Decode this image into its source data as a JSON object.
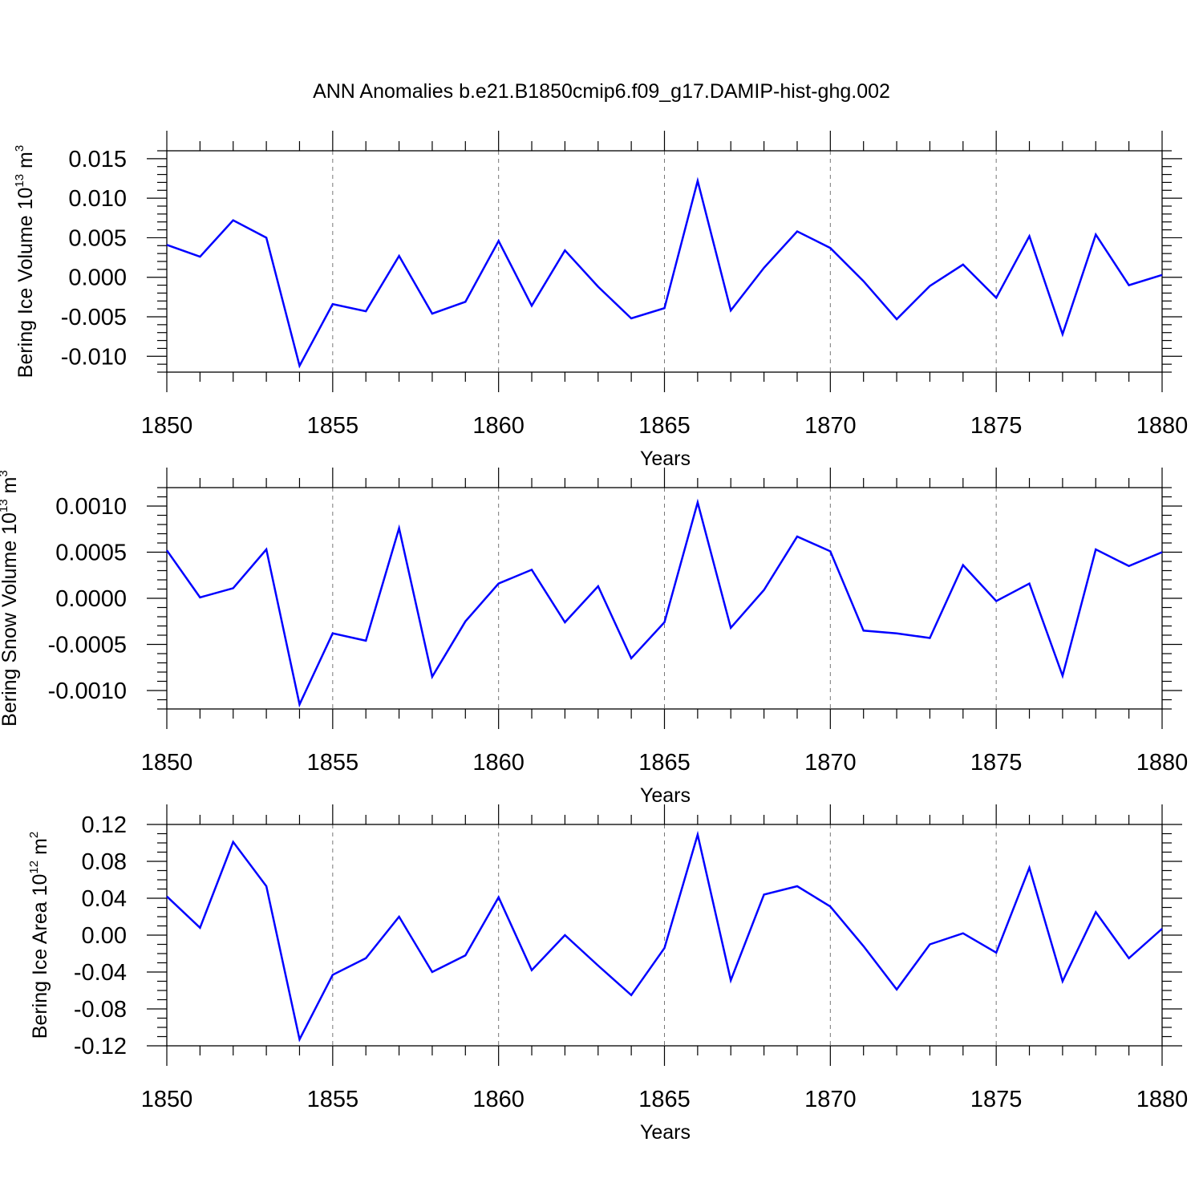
{
  "title": "ANN Anomalies b.e21.B1850cmip6.f09_g17.DAMIP-hist-ghg.002",
  "series_color": "#0000ff",
  "chart_data": [
    {
      "type": "line",
      "title": "",
      "xlabel": "Years",
      "ylabel_main": "Bering Ice Volume 10",
      "ylabel_exp": "13",
      "ylabel_unit": " m",
      "ylabel_unit_exp": "3",
      "xlim": [
        1850,
        1880
      ],
      "ylim": [
        -0.012,
        0.016
      ],
      "xticks": [
        1850,
        1855,
        1860,
        1865,
        1870,
        1875,
        1880
      ],
      "yticks": [
        -0.01,
        -0.005,
        0.0,
        0.005,
        0.01,
        0.015
      ],
      "ytick_labels": [
        "-0.010",
        "-0.005",
        "0.000",
        "0.005",
        "0.010",
        "0.015"
      ],
      "yminor_step": 0.001,
      "x": [
        1850,
        1851,
        1852,
        1853,
        1854,
        1855,
        1856,
        1857,
        1858,
        1859,
        1860,
        1861,
        1862,
        1863,
        1864,
        1865,
        1866,
        1867,
        1868,
        1869,
        1870,
        1871,
        1872,
        1873,
        1874,
        1875,
        1876,
        1877,
        1878,
        1879,
        1880
      ],
      "values": [
        0.0041,
        0.0026,
        0.0072,
        0.005,
        -0.0112,
        -0.0034,
        -0.0043,
        0.0027,
        -0.0046,
        -0.0031,
        0.0046,
        -0.0036,
        0.0034,
        -0.0012,
        -0.0052,
        -0.0039,
        0.0122,
        -0.0042,
        0.0012,
        0.0058,
        0.0037,
        -0.0005,
        -0.0053,
        -0.0011,
        0.0016,
        -0.0026,
        0.0052,
        -0.0072,
        0.0054,
        -0.001,
        0.0003
      ]
    },
    {
      "type": "line",
      "title": "",
      "xlabel": "Years",
      "ylabel_main": "Bering Snow Volume 10",
      "ylabel_exp": "13",
      "ylabel_unit": " m",
      "ylabel_unit_exp": "3",
      "xlim": [
        1850,
        1880
      ],
      "ylim": [
        -0.0012,
        0.0012
      ],
      "xticks": [
        1850,
        1855,
        1860,
        1865,
        1870,
        1875,
        1880
      ],
      "yticks": [
        -0.001,
        -0.0005,
        0.0,
        0.0005,
        0.001
      ],
      "ytick_labels": [
        "-0.0010",
        "-0.0005",
        "0.0000",
        "0.0005",
        "0.0010"
      ],
      "yminor_step": 0.0001,
      "x": [
        1850,
        1851,
        1852,
        1853,
        1854,
        1855,
        1856,
        1857,
        1858,
        1859,
        1860,
        1861,
        1862,
        1863,
        1864,
        1865,
        1866,
        1867,
        1868,
        1869,
        1870,
        1871,
        1872,
        1873,
        1874,
        1875,
        1876,
        1877,
        1878,
        1879,
        1880
      ],
      "values": [
        0.00052,
        1e-05,
        0.00011,
        0.00053,
        -0.00115,
        -0.00038,
        -0.00046,
        0.00076,
        -0.00085,
        -0.00025,
        0.00016,
        0.00031,
        -0.00026,
        0.00013,
        -0.00065,
        -0.00026,
        0.00104,
        -0.00032,
        9e-05,
        0.00067,
        0.00051,
        -0.00035,
        -0.00038,
        -0.00043,
        0.00036,
        -3e-05,
        0.00016,
        -0.00084,
        0.00053,
        0.00035,
        0.0005
      ]
    },
    {
      "type": "line",
      "title": "",
      "xlabel": "Years",
      "ylabel_main": "Bering Ice Area 10",
      "ylabel_exp": "12",
      "ylabel_unit": " m",
      "ylabel_unit_exp": "2",
      "xlim": [
        1850,
        1880
      ],
      "ylim": [
        -0.12,
        0.12
      ],
      "xticks": [
        1850,
        1855,
        1860,
        1865,
        1870,
        1875,
        1880
      ],
      "yticks": [
        -0.12,
        -0.08,
        -0.04,
        0.0,
        0.04,
        0.08,
        0.12
      ],
      "ytick_labels": [
        "-0.12",
        "-0.08",
        "-0.04",
        "0.00",
        "0.04",
        "0.08",
        "0.12"
      ],
      "yminor_step": 0.01,
      "x": [
        1850,
        1851,
        1852,
        1853,
        1854,
        1855,
        1856,
        1857,
        1858,
        1859,
        1860,
        1861,
        1862,
        1863,
        1864,
        1865,
        1866,
        1867,
        1868,
        1869,
        1870,
        1871,
        1872,
        1873,
        1874,
        1875,
        1876,
        1877,
        1878,
        1879,
        1880
      ],
      "values": [
        0.042,
        0.008,
        0.101,
        0.053,
        -0.113,
        -0.043,
        -0.025,
        0.02,
        -0.04,
        -0.022,
        0.041,
        -0.038,
        0.0,
        -0.033,
        -0.065,
        -0.014,
        0.109,
        -0.049,
        0.044,
        0.053,
        0.031,
        -0.012,
        -0.059,
        -0.01,
        0.002,
        -0.019,
        0.073,
        -0.05,
        0.025,
        -0.025,
        0.007
      ]
    }
  ]
}
